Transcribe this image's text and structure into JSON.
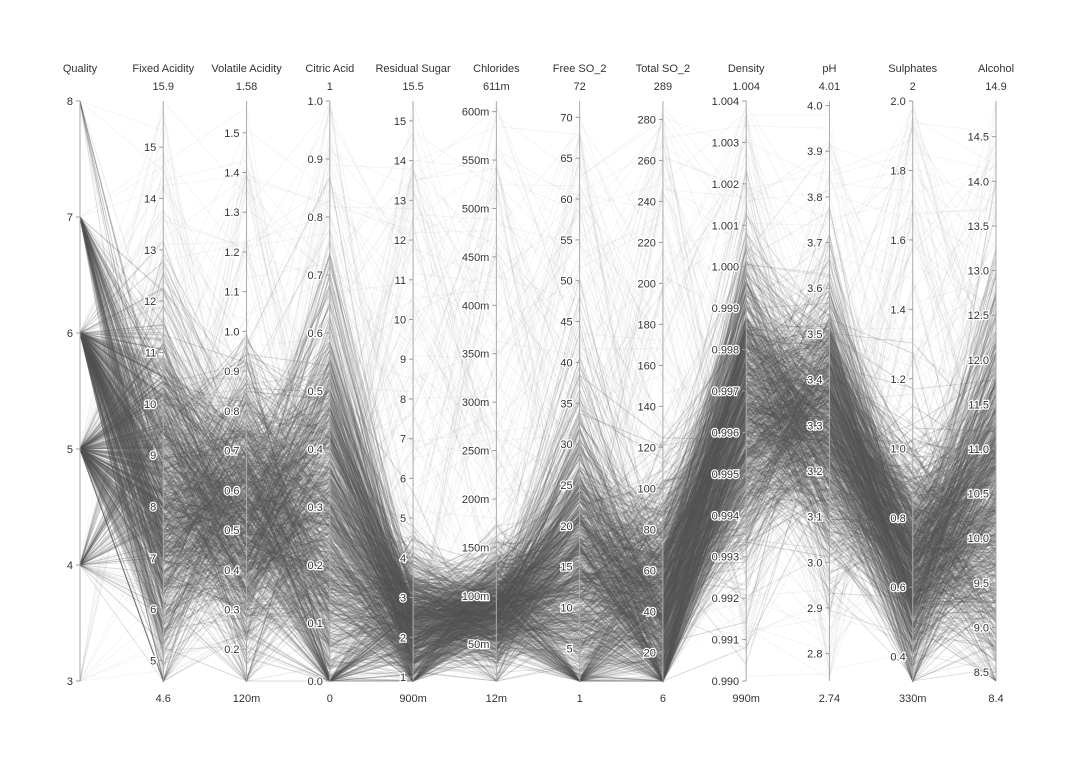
{
  "chart_data": {
    "type": "parallel-coordinates",
    "title": "",
    "line_color": "#555555",
    "axes": [
      {
        "name": "Quality",
        "min": 3,
        "max": 8,
        "min_label": "",
        "max_label": "",
        "ticks": [
          3,
          4,
          5,
          6,
          7,
          8
        ],
        "tick_labels": [
          "3",
          "4",
          "5",
          "6",
          "7",
          "8"
        ],
        "tick_side": "left",
        "center": 5.6,
        "spread": 0.8,
        "integer": true
      },
      {
        "name": "Fixed Acidity",
        "min": 4.6,
        "max": 15.9,
        "min_label": "4.6",
        "max_label": "15.9",
        "ticks": [
          5,
          6,
          7,
          8,
          9,
          10,
          11,
          12,
          13,
          14,
          15
        ],
        "tick_labels": [
          "5",
          "6",
          "7",
          "8",
          "9",
          "10",
          "11",
          "12",
          "13",
          "14",
          "15"
        ],
        "tick_side": "left",
        "center": 8.3,
        "spread": 1.7
      },
      {
        "name": "Volatile Acidity",
        "min": 0.12,
        "max": 1.58,
        "min_label": "120m",
        "max_label": "1.58",
        "ticks": [
          0.2,
          0.3,
          0.4,
          0.5,
          0.6,
          0.7,
          0.8,
          0.9,
          1.0,
          1.1,
          1.2,
          1.3,
          1.4,
          1.5
        ],
        "tick_labels": [
          "0.2",
          "0.3",
          "0.4",
          "0.5",
          "0.6",
          "0.7",
          "0.8",
          "0.9",
          "1.0",
          "1.1",
          "1.2",
          "1.3",
          "1.4",
          "1.5"
        ],
        "tick_side": "left",
        "center": 0.53,
        "spread": 0.18
      },
      {
        "name": "Citric Acid",
        "min": 0,
        "max": 1,
        "min_label": "0",
        "max_label": "1",
        "ticks": [
          0.0,
          0.1,
          0.2,
          0.3,
          0.4,
          0.5,
          0.6,
          0.7,
          0.8,
          0.9,
          1.0
        ],
        "tick_labels": [
          "0.0",
          "0.1",
          "0.2",
          "0.3",
          "0.4",
          "0.5",
          "0.6",
          "0.7",
          "0.8",
          "0.9",
          "1.0"
        ],
        "tick_side": "left",
        "center": 0.27,
        "spread": 0.19
      },
      {
        "name": "Residual Sugar",
        "min": 0.9,
        "max": 15.5,
        "min_label": "900m",
        "max_label": "15.5",
        "ticks": [
          1,
          2,
          3,
          4,
          5,
          6,
          7,
          8,
          9,
          10,
          11,
          12,
          13,
          14,
          15
        ],
        "tick_labels": [
          "1",
          "2",
          "3",
          "4",
          "5",
          "6",
          "7",
          "8",
          "9",
          "10",
          "11",
          "12",
          "13",
          "14",
          "15"
        ],
        "tick_side": "left",
        "center": 2.3,
        "spread": 0.9
      },
      {
        "name": "Chlorides",
        "min": 0.012,
        "max": 0.611,
        "min_label": "12m",
        "max_label": "611m",
        "ticks": [
          0.05,
          0.1,
          0.15,
          0.2,
          0.25,
          0.3,
          0.35,
          0.4,
          0.45,
          0.5,
          0.55,
          0.6
        ],
        "tick_labels": [
          "50m",
          "100m",
          "150m",
          "200m",
          "250m",
          "300m",
          "350m",
          "400m",
          "450m",
          "500m",
          "550m",
          "600m"
        ],
        "tick_side": "left",
        "center": 0.085,
        "spread": 0.03
      },
      {
        "name": "Free SO_2",
        "min": 1,
        "max": 72,
        "min_label": "1",
        "max_label": "72",
        "ticks": [
          5,
          10,
          15,
          20,
          25,
          30,
          35,
          40,
          45,
          50,
          55,
          60,
          65,
          70
        ],
        "tick_labels": [
          "5",
          "10",
          "15",
          "20",
          "25",
          "30",
          "35",
          "40",
          "45",
          "50",
          "55",
          "60",
          "65",
          "70"
        ],
        "tick_side": "left",
        "center": 15,
        "spread": 10
      },
      {
        "name": "Total SO_2",
        "min": 6,
        "max": 289,
        "min_label": "6",
        "max_label": "289",
        "ticks": [
          20,
          40,
          60,
          80,
          100,
          120,
          140,
          160,
          180,
          200,
          220,
          240,
          260,
          280
        ],
        "tick_labels": [
          "20",
          "40",
          "60",
          "80",
          "100",
          "120",
          "140",
          "160",
          "180",
          "200",
          "220",
          "240",
          "260",
          "280"
        ],
        "tick_side": "left",
        "center": 46,
        "spread": 30
      },
      {
        "name": "Density",
        "min": 0.99,
        "max": 1.004,
        "min_label": "990m",
        "max_label": "1.004",
        "ticks": [
          0.99,
          0.991,
          0.992,
          0.993,
          0.994,
          0.995,
          0.996,
          0.997,
          0.998,
          0.999,
          1.0,
          1.001,
          1.002,
          1.003,
          1.004
        ],
        "tick_labels": [
          "0.990",
          "0.991",
          "0.992",
          "0.993",
          "0.994",
          "0.995",
          "0.996",
          "0.997",
          "0.998",
          "0.999",
          "1.000",
          "1.001",
          "1.002",
          "1.003",
          "1.004"
        ],
        "tick_side": "left",
        "center": 0.9967,
        "spread": 0.0018
      },
      {
        "name": "pH",
        "min": 2.74,
        "max": 4.01,
        "min_label": "2.74",
        "max_label": "4.01",
        "ticks": [
          2.8,
          2.9,
          3.0,
          3.1,
          3.2,
          3.3,
          3.4,
          3.5,
          3.6,
          3.7,
          3.8,
          3.9,
          4.0
        ],
        "tick_labels": [
          "2.8",
          "2.9",
          "3.0",
          "3.1",
          "3.2",
          "3.3",
          "3.4",
          "3.5",
          "3.6",
          "3.7",
          "3.8",
          "3.9",
          "4.0"
        ],
        "tick_side": "left",
        "center": 3.31,
        "spread": 0.15
      },
      {
        "name": "Sulphates",
        "min": 0.33,
        "max": 2,
        "min_label": "330m",
        "max_label": "2",
        "ticks": [
          0.4,
          0.6,
          0.8,
          1.0,
          1.2,
          1.4,
          1.6,
          1.8,
          2.0
        ],
        "tick_labels": [
          "0.4",
          "0.6",
          "0.8",
          "1.0",
          "1.2",
          "1.4",
          "1.6",
          "1.8",
          "2.0"
        ],
        "tick_side": "left",
        "center": 0.66,
        "spread": 0.17
      },
      {
        "name": "Alcohol",
        "min": 8.4,
        "max": 14.9,
        "min_label": "8.4",
        "max_label": "14.9",
        "ticks": [
          8.5,
          9.0,
          9.5,
          10.0,
          10.5,
          11.0,
          11.5,
          12.0,
          12.5,
          13.0,
          13.5,
          14.0,
          14.5
        ],
        "tick_labels": [
          "8.5",
          "9.0",
          "9.5",
          "10.0",
          "10.5",
          "11.0",
          "11.5",
          "12.0",
          "12.5",
          "13.0",
          "13.5",
          "14.0",
          "14.5"
        ],
        "tick_side": "left",
        "center": 10.4,
        "spread": 1.0
      }
    ],
    "sample_records": 1599
  }
}
